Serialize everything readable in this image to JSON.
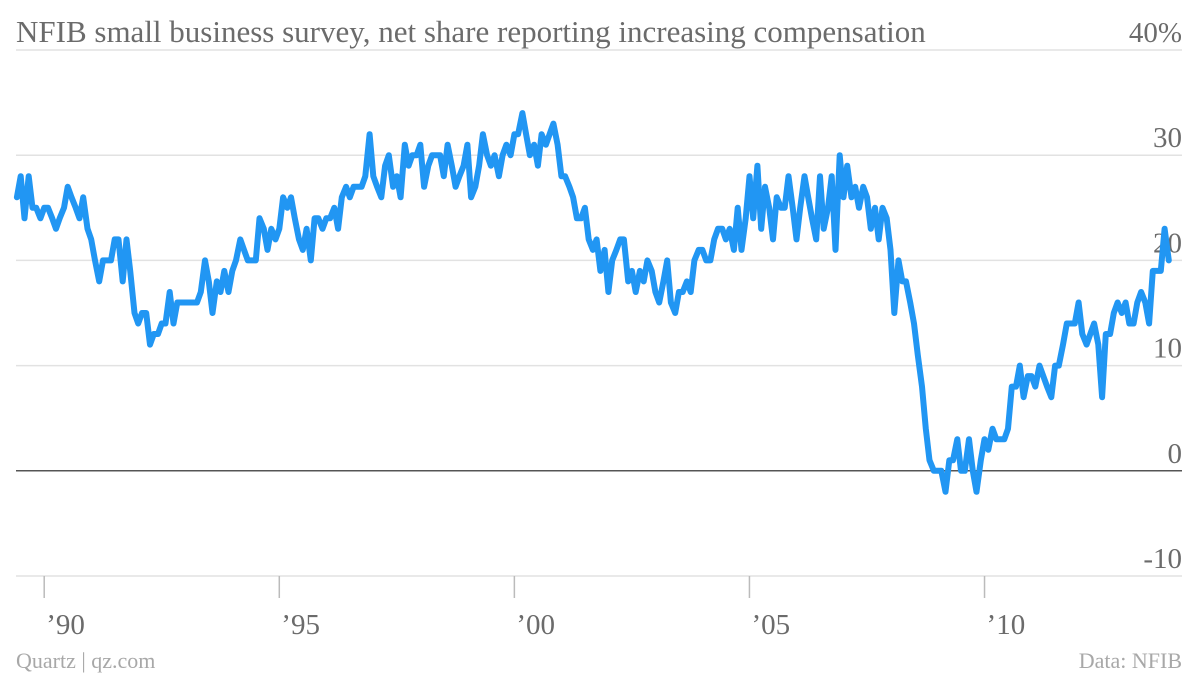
{
  "colors": {
    "line": "#2196f3",
    "text": "#6b6b6b",
    "footer": "#a8a8a8"
  },
  "footer": {
    "source_left": "Quartz | qz.com",
    "source_right": "Data: NFIB"
  },
  "chart_data": {
    "type": "line",
    "title": "NFIB small business survey, net share reporting increasing compensation",
    "xlabel": "",
    "ylabel": "",
    "xlim": [
      1989.4,
      2014.2
    ],
    "ylim": [
      -10,
      40
    ],
    "grid": true,
    "yticks": [
      {
        "value": 40,
        "label": "40%"
      },
      {
        "value": 30,
        "label": "30"
      },
      {
        "value": 20,
        "label": "20"
      },
      {
        "value": 10,
        "label": "10"
      },
      {
        "value": 0,
        "label": "0"
      },
      {
        "value": -10,
        "label": "-10"
      }
    ],
    "xticks": [
      {
        "value": 1990,
        "label": "’90"
      },
      {
        "value": 1995,
        "label": "’95"
      },
      {
        "value": 2000,
        "label": "’00"
      },
      {
        "value": 2005,
        "label": "’05"
      },
      {
        "value": 2010,
        "label": "’10"
      }
    ],
    "series": [
      {
        "points": [
          [
            1989.42,
            26
          ],
          [
            1989.5,
            28
          ],
          [
            1989.58,
            24
          ],
          [
            1989.67,
            28
          ],
          [
            1989.75,
            25
          ],
          [
            1989.83,
            25
          ],
          [
            1989.92,
            24
          ],
          [
            1990.0,
            25
          ],
          [
            1990.08,
            25
          ],
          [
            1990.17,
            24
          ],
          [
            1990.25,
            23
          ],
          [
            1990.33,
            24
          ],
          [
            1990.42,
            25
          ],
          [
            1990.5,
            27
          ],
          [
            1990.58,
            26
          ],
          [
            1990.67,
            25
          ],
          [
            1990.75,
            24
          ],
          [
            1990.83,
            26
          ],
          [
            1990.92,
            23
          ],
          [
            1991.0,
            22
          ],
          [
            1991.08,
            20
          ],
          [
            1991.17,
            18
          ],
          [
            1991.25,
            20
          ],
          [
            1991.33,
            20
          ],
          [
            1991.42,
            20
          ],
          [
            1991.5,
            22
          ],
          [
            1991.58,
            22
          ],
          [
            1991.67,
            18
          ],
          [
            1991.75,
            22
          ],
          [
            1991.83,
            19
          ],
          [
            1991.92,
            15
          ],
          [
            1992.0,
            14
          ],
          [
            1992.08,
            15
          ],
          [
            1992.17,
            15
          ],
          [
            1992.25,
            12
          ],
          [
            1992.33,
            13
          ],
          [
            1992.42,
            13
          ],
          [
            1992.5,
            14
          ],
          [
            1992.58,
            14
          ],
          [
            1992.67,
            17
          ],
          [
            1992.75,
            14
          ],
          [
            1992.83,
            16
          ],
          [
            1992.92,
            16
          ],
          [
            1993.0,
            16
          ],
          [
            1993.08,
            16
          ],
          [
            1993.17,
            16
          ],
          [
            1993.25,
            16
          ],
          [
            1993.33,
            17
          ],
          [
            1993.42,
            20
          ],
          [
            1993.5,
            18
          ],
          [
            1993.58,
            15
          ],
          [
            1993.67,
            18
          ],
          [
            1993.75,
            17
          ],
          [
            1993.83,
            19
          ],
          [
            1993.92,
            17
          ],
          [
            1994.0,
            19
          ],
          [
            1994.08,
            20
          ],
          [
            1994.17,
            22
          ],
          [
            1994.25,
            21
          ],
          [
            1994.33,
            20
          ],
          [
            1994.42,
            20
          ],
          [
            1994.5,
            20
          ],
          [
            1994.58,
            24
          ],
          [
            1994.67,
            23
          ],
          [
            1994.75,
            21
          ],
          [
            1994.83,
            23
          ],
          [
            1994.92,
            22
          ],
          [
            1995.0,
            23
          ],
          [
            1995.08,
            26
          ],
          [
            1995.17,
            25
          ],
          [
            1995.25,
            26
          ],
          [
            1995.33,
            24
          ],
          [
            1995.42,
            22
          ],
          [
            1995.5,
            21
          ],
          [
            1995.58,
            23
          ],
          [
            1995.67,
            20
          ],
          [
            1995.75,
            24
          ],
          [
            1995.83,
            24
          ],
          [
            1995.92,
            23
          ],
          [
            1996.0,
            24
          ],
          [
            1996.08,
            24
          ],
          [
            1996.17,
            25
          ],
          [
            1996.25,
            23
          ],
          [
            1996.33,
            26
          ],
          [
            1996.42,
            27
          ],
          [
            1996.5,
            26
          ],
          [
            1996.58,
            27
          ],
          [
            1996.67,
            27
          ],
          [
            1996.75,
            27
          ],
          [
            1996.83,
            28
          ],
          [
            1996.92,
            32
          ],
          [
            1997.0,
            28
          ],
          [
            1997.08,
            27
          ],
          [
            1997.17,
            26
          ],
          [
            1997.25,
            29
          ],
          [
            1997.33,
            30
          ],
          [
            1997.42,
            27
          ],
          [
            1997.5,
            28
          ],
          [
            1997.58,
            26
          ],
          [
            1997.67,
            31
          ],
          [
            1997.75,
            29
          ],
          [
            1997.83,
            30
          ],
          [
            1997.92,
            30
          ],
          [
            1998.0,
            31
          ],
          [
            1998.08,
            27
          ],
          [
            1998.17,
            29
          ],
          [
            1998.25,
            30
          ],
          [
            1998.33,
            30
          ],
          [
            1998.42,
            30
          ],
          [
            1998.5,
            28
          ],
          [
            1998.58,
            31
          ],
          [
            1998.67,
            29
          ],
          [
            1998.75,
            27
          ],
          [
            1998.83,
            28
          ],
          [
            1998.92,
            29
          ],
          [
            1999.0,
            31
          ],
          [
            1999.08,
            26
          ],
          [
            1999.17,
            27
          ],
          [
            1999.25,
            29
          ],
          [
            1999.33,
            32
          ],
          [
            1999.42,
            30
          ],
          [
            1999.5,
            29
          ],
          [
            1999.58,
            30
          ],
          [
            1999.67,
            28
          ],
          [
            1999.75,
            30
          ],
          [
            1999.83,
            31
          ],
          [
            1999.92,
            30
          ],
          [
            2000.0,
            32
          ],
          [
            2000.08,
            32
          ],
          [
            2000.17,
            34
          ],
          [
            2000.25,
            32
          ],
          [
            2000.33,
            30
          ],
          [
            2000.42,
            31
          ],
          [
            2000.5,
            29
          ],
          [
            2000.58,
            32
          ],
          [
            2000.67,
            31
          ],
          [
            2000.75,
            32
          ],
          [
            2000.83,
            33
          ],
          [
            2000.92,
            31
          ],
          [
            2001.0,
            28
          ],
          [
            2001.08,
            28
          ],
          [
            2001.17,
            27
          ],
          [
            2001.25,
            26
          ],
          [
            2001.33,
            24
          ],
          [
            2001.42,
            24
          ],
          [
            2001.5,
            25
          ],
          [
            2001.58,
            22
          ],
          [
            2001.67,
            21
          ],
          [
            2001.75,
            22
          ],
          [
            2001.83,
            19
          ],
          [
            2001.92,
            21
          ],
          [
            2002.0,
            17
          ],
          [
            2002.08,
            20
          ],
          [
            2002.17,
            21
          ],
          [
            2002.25,
            22
          ],
          [
            2002.33,
            22
          ],
          [
            2002.42,
            18
          ],
          [
            2002.5,
            19
          ],
          [
            2002.58,
            17
          ],
          [
            2002.67,
            19
          ],
          [
            2002.75,
            18
          ],
          [
            2002.83,
            20
          ],
          [
            2002.92,
            19
          ],
          [
            2003.0,
            17
          ],
          [
            2003.08,
            16
          ],
          [
            2003.17,
            18
          ],
          [
            2003.25,
            20
          ],
          [
            2003.33,
            16
          ],
          [
            2003.42,
            15
          ],
          [
            2003.5,
            17
          ],
          [
            2003.58,
            17
          ],
          [
            2003.67,
            18
          ],
          [
            2003.75,
            17
          ],
          [
            2003.83,
            20
          ],
          [
            2003.92,
            21
          ],
          [
            2004.0,
            21
          ],
          [
            2004.08,
            20
          ],
          [
            2004.17,
            20
          ],
          [
            2004.25,
            22
          ],
          [
            2004.33,
            23
          ],
          [
            2004.42,
            23
          ],
          [
            2004.5,
            22
          ],
          [
            2004.58,
            23
          ],
          [
            2004.67,
            21
          ],
          [
            2004.75,
            25
          ],
          [
            2004.83,
            21
          ],
          [
            2004.92,
            24
          ],
          [
            2005.0,
            28
          ],
          [
            2005.08,
            24
          ],
          [
            2005.17,
            29
          ],
          [
            2005.25,
            23
          ],
          [
            2005.33,
            27
          ],
          [
            2005.42,
            25
          ],
          [
            2005.5,
            22
          ],
          [
            2005.58,
            26
          ],
          [
            2005.67,
            25
          ],
          [
            2005.75,
            25
          ],
          [
            2005.83,
            28
          ],
          [
            2005.92,
            25
          ],
          [
            2006.0,
            22
          ],
          [
            2006.08,
            25
          ],
          [
            2006.17,
            28
          ],
          [
            2006.25,
            26
          ],
          [
            2006.33,
            24
          ],
          [
            2006.42,
            22
          ],
          [
            2006.5,
            28
          ],
          [
            2006.58,
            23
          ],
          [
            2006.67,
            25
          ],
          [
            2006.75,
            28
          ],
          [
            2006.83,
            21
          ],
          [
            2006.92,
            30
          ],
          [
            2007.0,
            26
          ],
          [
            2007.08,
            29
          ],
          [
            2007.17,
            26
          ],
          [
            2007.25,
            27
          ],
          [
            2007.33,
            25
          ],
          [
            2007.42,
            27
          ],
          [
            2007.5,
            26
          ],
          [
            2007.58,
            23
          ],
          [
            2007.67,
            25
          ],
          [
            2007.75,
            22
          ],
          [
            2007.83,
            25
          ],
          [
            2007.92,
            24
          ],
          [
            2008.0,
            21
          ],
          [
            2008.08,
            15
          ],
          [
            2008.17,
            20
          ],
          [
            2008.25,
            18
          ],
          [
            2008.33,
            18
          ],
          [
            2008.42,
            16
          ],
          [
            2008.5,
            14
          ],
          [
            2008.58,
            11
          ],
          [
            2008.67,
            8
          ],
          [
            2008.75,
            4
          ],
          [
            2008.83,
            1
          ],
          [
            2008.92,
            0
          ],
          [
            2009.0,
            0
          ],
          [
            2009.08,
            0
          ],
          [
            2009.17,
            -2
          ],
          [
            2009.25,
            1
          ],
          [
            2009.33,
            1
          ],
          [
            2009.42,
            3
          ],
          [
            2009.5,
            0
          ],
          [
            2009.58,
            0
          ],
          [
            2009.67,
            3
          ],
          [
            2009.75,
            0
          ],
          [
            2009.83,
            -2
          ],
          [
            2009.92,
            1
          ],
          [
            2010.0,
            3
          ],
          [
            2010.08,
            2
          ],
          [
            2010.17,
            4
          ],
          [
            2010.25,
            3
          ],
          [
            2010.33,
            3
          ],
          [
            2010.42,
            3
          ],
          [
            2010.5,
            4
          ],
          [
            2010.58,
            8
          ],
          [
            2010.67,
            8
          ],
          [
            2010.75,
            10
          ],
          [
            2010.83,
            7
          ],
          [
            2010.92,
            9
          ],
          [
            2011.0,
            9
          ],
          [
            2011.08,
            8
          ],
          [
            2011.17,
            10
          ],
          [
            2011.25,
            9
          ],
          [
            2011.33,
            8
          ],
          [
            2011.42,
            7
          ],
          [
            2011.5,
            10
          ],
          [
            2011.58,
            10
          ],
          [
            2011.67,
            12
          ],
          [
            2011.75,
            14
          ],
          [
            2011.83,
            14
          ],
          [
            2011.92,
            14
          ],
          [
            2012.0,
            16
          ],
          [
            2012.08,
            13
          ],
          [
            2012.17,
            12
          ],
          [
            2012.25,
            13
          ],
          [
            2012.33,
            14
          ],
          [
            2012.42,
            12
          ],
          [
            2012.5,
            7
          ],
          [
            2012.58,
            13
          ],
          [
            2012.67,
            13
          ],
          [
            2012.75,
            15
          ],
          [
            2012.83,
            16
          ],
          [
            2012.92,
            15
          ],
          [
            2013.0,
            16
          ],
          [
            2013.08,
            14
          ],
          [
            2013.17,
            14
          ],
          [
            2013.25,
            16
          ],
          [
            2013.33,
            17
          ],
          [
            2013.42,
            16
          ],
          [
            2013.5,
            14
          ],
          [
            2013.58,
            19
          ],
          [
            2013.67,
            19
          ],
          [
            2013.75,
            19
          ],
          [
            2013.83,
            23
          ],
          [
            2013.92,
            20
          ]
        ]
      }
    ]
  }
}
